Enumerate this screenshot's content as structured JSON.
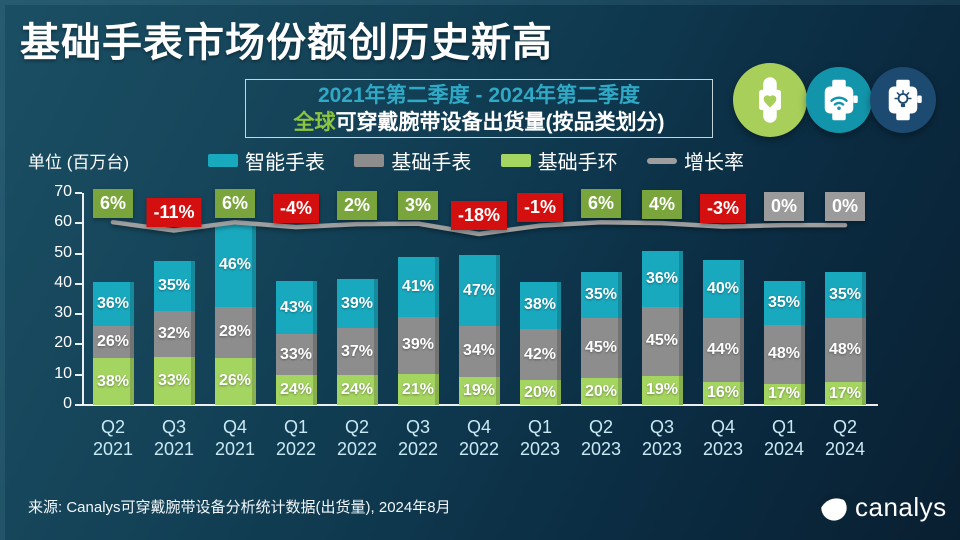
{
  "title": "基础手表市场份额创历史新高",
  "subtitle": {
    "period": "2021年第二季度 - 2024年第二季度",
    "scope_highlight": "全球",
    "scope_rest": "可穿戴腕带设备出货量(按品类划分)"
  },
  "unit_label": "单位 (百万台)",
  "legend": [
    {
      "label": "智能手表",
      "color": "#19a9bf",
      "type": "square"
    },
    {
      "label": "基础手表",
      "color": "#8d8d8d",
      "type": "square"
    },
    {
      "label": "基础手环",
      "color": "#a5d561",
      "type": "square"
    },
    {
      "label": "增长率",
      "color": "#9e9e9e",
      "type": "line"
    }
  ],
  "badges": [
    {
      "name": "basic-band-icon",
      "color": "#a8cf5a"
    },
    {
      "name": "basic-watch-icon",
      "color": "#1295aa"
    },
    {
      "name": "smart-watch-icon",
      "color": "#1c4a70"
    }
  ],
  "chart_data": {
    "type": "bar",
    "stacked": true,
    "categories": [
      "Q2 2021",
      "Q3 2021",
      "Q4 2021",
      "Q1 2022",
      "Q2 2022",
      "Q3 2022",
      "Q4 2022",
      "Q1 2023",
      "Q2 2023",
      "Q3 2023",
      "Q4 2023",
      "Q1 2024",
      "Q2 2024"
    ],
    "category_lines": [
      [
        "Q2",
        "2021"
      ],
      [
        "Q3",
        "2021"
      ],
      [
        "Q4",
        "2021"
      ],
      [
        "Q1",
        "2022"
      ],
      [
        "Q2",
        "2022"
      ],
      [
        "Q3",
        "2022"
      ],
      [
        "Q4",
        "2022"
      ],
      [
        "Q1",
        "2023"
      ],
      [
        "Q2",
        "2023"
      ],
      [
        "Q3",
        "2023"
      ],
      [
        "Q4",
        "2023"
      ],
      [
        "Q1",
        "2024"
      ],
      [
        "Q2",
        "2024"
      ]
    ],
    "series": [
      {
        "name": "智能手表",
        "color": "#19a9bf",
        "share_pct": [
          36,
          35,
          46,
          43,
          39,
          41,
          47,
          38,
          35,
          36,
          40,
          35,
          35
        ]
      },
      {
        "name": "基础手表",
        "color": "#8d8d8d",
        "share_pct": [
          26,
          32,
          28,
          33,
          37,
          39,
          34,
          42,
          45,
          45,
          44,
          48,
          48
        ]
      },
      {
        "name": "基础手环",
        "color": "#a5d561",
        "share_pct": [
          38,
          33,
          26,
          24,
          24,
          21,
          19,
          20,
          20,
          19,
          16,
          17,
          17
        ]
      }
    ],
    "stack_order_bottom_up": [
      "基础手环",
      "基础手表",
      "智能手表"
    ],
    "totals_millions": [
      40.6,
      47.6,
      60,
      41,
      41.5,
      49,
      49.4,
      40.6,
      44,
      50.8,
      48,
      40.8,
      44
    ],
    "growth_rate_pct": [
      6,
      -11,
      6,
      -4,
      2,
      3,
      -18,
      -1,
      6,
      4,
      -3,
      0,
      0
    ],
    "growth_chip_colors": {
      "positive": "#7aa53c",
      "negative": "#d40f0f",
      "zero": "#9b9b9b"
    },
    "line_color": "#9e9e9e",
    "title": "全球可穿戴腕带设备出货量(按品类划分)",
    "ylabel": "单位 (百万台)",
    "ylim": [
      0,
      70
    ],
    "yticks": [
      0,
      10,
      20,
      30,
      40,
      50,
      60,
      70
    ],
    "grid": false,
    "legend_position": "top"
  },
  "source": "来源: Canalys可穿戴腕带设备分析统计数据(出货量), 2024年8月",
  "logo": {
    "text": "canalys"
  }
}
